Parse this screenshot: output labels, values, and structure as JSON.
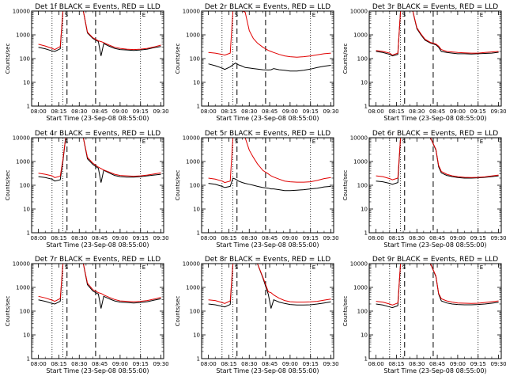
{
  "chart_data": {
    "type": "line",
    "layout": "3x3 grid",
    "shared_xlabel": "Start Time (23-Sep-08 08:55:00)",
    "shared_ylabel": "Counts/sec",
    "x_ticks": [
      "08:00",
      "08:15",
      "08:30",
      "08:45",
      "09:00",
      "09:15",
      "09:30"
    ],
    "x_range": [
      "07:55",
      "09:32"
    ],
    "y_ticks": [
      "1",
      "10",
      "100",
      "1000",
      "10000"
    ],
    "y_range": [
      1,
      10000
    ],
    "y_scale": "log",
    "series_colors": {
      "events": "#000000",
      "lld": "#e00000"
    },
    "dotted_lines": [
      "08:10",
      "08:18",
      "09:15"
    ],
    "dashed_lines": [
      "08:21",
      "08:42"
    ],
    "markers": [
      "S",
      "E"
    ],
    "x": [
      "08:00",
      "08:05",
      "08:10",
      "08:12",
      "08:16",
      "08:18",
      "08:20",
      "08:22",
      "08:25",
      "08:27",
      "08:30",
      "08:33",
      "08:36",
      "08:40",
      "08:44",
      "08:46",
      "08:48",
      "08:52",
      "08:56",
      "09:00",
      "09:05",
      "09:10",
      "09:15",
      "09:20",
      "09:25",
      "09:30"
    ],
    "panels": [
      {
        "title": "Det 1f BLACK = Events, RED = LLD",
        "series": [
          {
            "key": "events",
            "values": [
              300,
              260,
              210,
              200,
              260,
              10000,
              10000,
              10000,
              10000,
              10000,
              10000,
              10000,
              1200,
              700,
              520,
              130,
              430,
              330,
              270,
              240,
              230,
              220,
              230,
              250,
              290,
              320
            ]
          },
          {
            "key": "lld",
            "values": [
              400,
              340,
              270,
              240,
              320,
              10000,
              10000,
              10000,
              10000,
              10000,
              10000,
              10000,
              1300,
              750,
              560,
              520,
              470,
              370,
              300,
              270,
              250,
              240,
              250,
              270,
              310,
              370
            ]
          }
        ]
      },
      {
        "title": "Det 2r BLACK = Events, RED = LLD",
        "series": [
          {
            "key": "events",
            "values": [
              60,
              50,
              40,
              35,
              45,
              55,
              65,
              55,
              48,
              42,
              40,
              38,
              36,
              34,
              33,
              34,
              38,
              34,
              32,
              30,
              30,
              32,
              36,
              42,
              48,
              52
            ]
          },
          {
            "key": "lld",
            "values": [
              180,
              170,
              150,
              140,
              170,
              10000,
              10000,
              10000,
              10000,
              9000,
              1500,
              700,
              450,
              300,
              220,
              200,
              180,
              150,
              130,
              120,
              115,
              120,
              130,
              145,
              160,
              170
            ]
          }
        ]
      },
      {
        "title": "Det 3r BLACK = Events, RED = LLD",
        "series": [
          {
            "key": "events",
            "values": [
              200,
              180,
              150,
              130,
              150,
              10000,
              10000,
              10000,
              10000,
              10000,
              1800,
              1000,
              600,
              450,
              380,
              300,
              200,
              180,
              170,
              160,
              160,
              155,
              160,
              165,
              170,
              185
            ]
          },
          {
            "key": "lld",
            "values": [
              220,
              200,
              170,
              140,
              170,
              10000,
              10000,
              10000,
              10000,
              10000,
              2000,
              1100,
              650,
              480,
              410,
              330,
              240,
              200,
              190,
              180,
              175,
              170,
              170,
              180,
              190,
              200
            ]
          }
        ]
      },
      {
        "title": "Det 4r BLACK = Events, RED = LLD",
        "series": [
          {
            "key": "events",
            "values": [
              230,
              210,
              180,
              150,
              170,
              1000,
              10000,
              10000,
              10000,
              10000,
              10000,
              10000,
              1300,
              750,
              520,
              130,
              430,
              330,
              260,
              230,
              220,
              220,
              230,
              250,
              270,
              290
            ]
          },
          {
            "key": "lld",
            "values": [
              320,
              290,
              250,
              210,
              240,
              1200,
              10000,
              10000,
              10000,
              10000,
              10000,
              10000,
              1500,
              850,
              580,
              500,
              440,
              360,
              290,
              260,
              250,
              240,
              250,
              270,
              300,
              330
            ]
          }
        ]
      },
      {
        "title": "Det 5r BLACK = Events, RED = LLD",
        "series": [
          {
            "key": "events",
            "values": [
              120,
              110,
              90,
              80,
              90,
              200,
              180,
              150,
              130,
              120,
              110,
              100,
              90,
              80,
              75,
              70,
              70,
              65,
              60,
              60,
              62,
              65,
              70,
              75,
              85,
              90
            ]
          },
          {
            "key": "lld",
            "values": [
              200,
              180,
              150,
              130,
              150,
              10000,
              10000,
              10000,
              10000,
              10000,
              3000,
              1500,
              800,
              420,
              300,
              250,
              220,
              180,
              150,
              140,
              135,
              135,
              140,
              160,
              190,
              210
            ]
          }
        ]
      },
      {
        "title": "Det 6r BLACK = Events, RED = LLD",
        "series": [
          {
            "key": "events",
            "values": [
              150,
              140,
              120,
              110,
              130,
              10000,
              10000,
              10000,
              10000,
              10000,
              10000,
              10000,
              10000,
              10000,
              3000,
              600,
              330,
              260,
              230,
              210,
              200,
              200,
              205,
              215,
              230,
              250
            ]
          },
          {
            "key": "lld",
            "values": [
              250,
              230,
              190,
              170,
              200,
              10000,
              10000,
              10000,
              10000,
              10000,
              10000,
              10000,
              10000,
              10000,
              3200,
              680,
              380,
              290,
              250,
              230,
              215,
              210,
              215,
              225,
              245,
              270
            ]
          }
        ]
      },
      {
        "title": "Det 7r BLACK = Events, RED = LLD",
        "series": [
          {
            "key": "events",
            "values": [
              300,
              260,
              210,
              200,
              260,
              10000,
              10000,
              10000,
              10000,
              10000,
              10000,
              10000,
              1300,
              700,
              520,
              130,
              420,
              330,
              270,
              240,
              230,
              220,
              230,
              250,
              290,
              330
            ]
          },
          {
            "key": "lld",
            "values": [
              420,
              360,
              290,
              260,
              340,
              10000,
              10000,
              10000,
              10000,
              10000,
              10000,
              10000,
              1500,
              800,
              600,
              560,
              480,
              380,
              310,
              270,
              260,
              250,
              260,
              280,
              320,
              380
            ]
          }
        ]
      },
      {
        "title": "Det 8r BLACK = Events, RED = LLD",
        "series": [
          {
            "key": "events",
            "values": [
              200,
              185,
              160,
              150,
              190,
              10000,
              10000,
              10000,
              10000,
              10000,
              10000,
              10000,
              10000,
              2500,
              500,
              130,
              300,
              240,
              210,
              190,
              180,
              180,
              185,
              200,
              220,
              245
            ]
          },
          {
            "key": "lld",
            "values": [
              300,
              280,
              230,
              210,
              270,
              10000,
              10000,
              10000,
              10000,
              10000,
              10000,
              10000,
              10000,
              2700,
              650,
              600,
              480,
              350,
              280,
              250,
              240,
              240,
              245,
              260,
              290,
              320
            ]
          }
        ]
      },
      {
        "title": "Det 9r BLACK = Events, RED = LLD",
        "series": [
          {
            "key": "events",
            "values": [
              200,
              180,
              150,
              140,
              170,
              10000,
              10000,
              10000,
              10000,
              10000,
              10000,
              10000,
              10000,
              10000,
              2800,
              520,
              270,
              220,
              200,
              190,
              185,
              185,
              190,
              200,
              215,
              235
            ]
          },
          {
            "key": "lld",
            "values": [
              260,
              240,
              200,
              180,
              220,
              10000,
              10000,
              10000,
              10000,
              10000,
              10000,
              10000,
              10000,
              10000,
              3000,
              560,
              330,
              270,
              240,
              220,
              215,
              210,
              215,
              230,
              250,
              270
            ]
          }
        ]
      }
    ]
  }
}
